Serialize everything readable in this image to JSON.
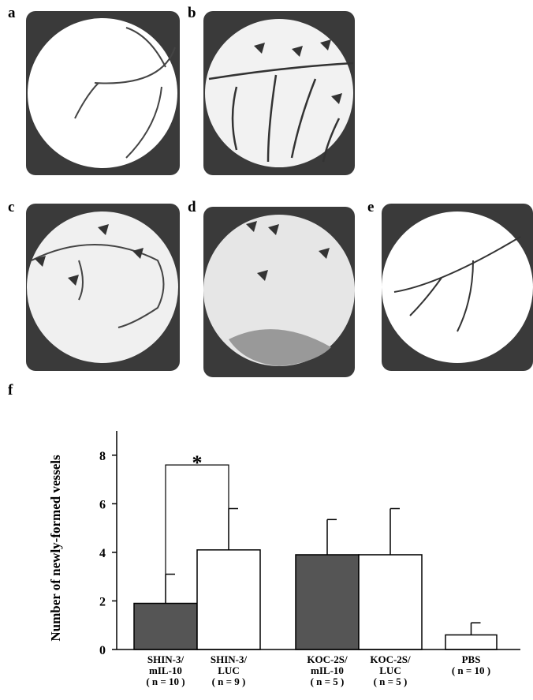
{
  "panel_labels": [
    "a",
    "b",
    "c",
    "d",
    "e"
  ],
  "chart_data": {
    "type": "bar",
    "panel_label": "f",
    "ylabel": "Number of newly-formed vessels",
    "categories": [
      [
        "SHIN-3/",
        "mIL-10",
        "( n = 10 )"
      ],
      [
        "SHIN-3/",
        "LUC",
        "( n = 9 )"
      ],
      [
        "KOC-2S/",
        "mIL-10",
        "( n = 5 )"
      ],
      [
        "KOC-2S/",
        "LUC",
        "( n = 5 )"
      ],
      [
        "PBS",
        "( n = 10 )"
      ]
    ],
    "values": [
      1.9,
      4.1,
      3.9,
      3.9,
      0.6
    ],
    "errors": [
      1.2,
      1.7,
      1.45,
      1.9,
      0.5
    ],
    "colors": [
      "#555555",
      "#ffffff",
      "#555555",
      "#ffffff",
      "#ffffff"
    ],
    "annotation": "*",
    "ylim": [
      0,
      9
    ],
    "yticks": [
      0,
      2,
      4,
      6,
      8
    ]
  }
}
